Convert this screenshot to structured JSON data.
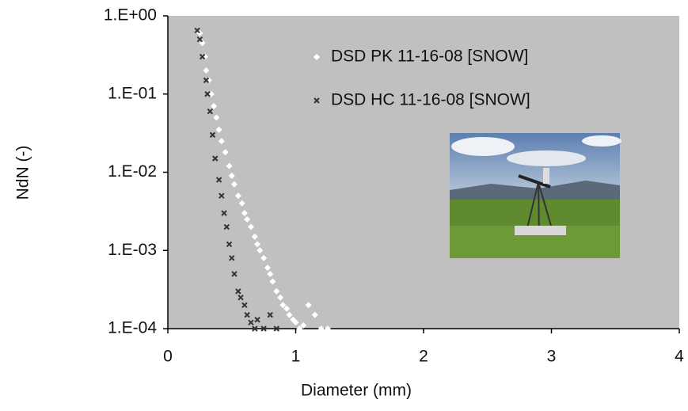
{
  "chart_data": {
    "type": "scatter",
    "x_label": "Diameter (mm)",
    "y_label": "NdN (-)",
    "xlim": [
      0,
      4
    ],
    "xticks": [
      0,
      1,
      2,
      3,
      4
    ],
    "ylim": [
      0.0001,
      1
    ],
    "log_y": true,
    "yticks": [
      {
        "value": 1,
        "label": "1.E+00"
      },
      {
        "value": 0.1,
        "label": "1.E-01"
      },
      {
        "value": 0.01,
        "label": "1.E-02"
      },
      {
        "value": 0.001,
        "label": "1.E-03"
      },
      {
        "value": 0.0001,
        "label": "1.E-04"
      }
    ],
    "legend": "upper right",
    "series": [
      {
        "name": "DSD PK 11-16-08 [SNOW]",
        "color": "#ffffff",
        "marker": "diamond",
        "x": [
          0.25,
          0.27,
          0.29,
          0.3,
          0.32,
          0.34,
          0.36,
          0.38,
          0.4,
          0.42,
          0.45,
          0.48,
          0.5,
          0.52,
          0.55,
          0.58,
          0.6,
          0.62,
          0.65,
          0.68,
          0.7,
          0.72,
          0.75,
          0.78,
          0.8,
          0.82,
          0.85,
          0.88,
          0.9,
          0.93,
          0.95,
          0.98,
          1.0,
          1.03,
          1.06,
          1.1,
          1.15,
          1.2,
          1.25
        ],
        "values": [
          0.6,
          0.45,
          0.3,
          0.2,
          0.15,
          0.1,
          0.07,
          0.05,
          0.035,
          0.025,
          0.018,
          0.012,
          0.009,
          0.007,
          0.005,
          0.004,
          0.003,
          0.0025,
          0.002,
          0.0015,
          0.0012,
          0.001,
          0.0008,
          0.0006,
          0.0005,
          0.0004,
          0.0003,
          0.00025,
          0.0002,
          0.00018,
          0.00015,
          0.00013,
          0.00012,
          0.0001,
          0.00011,
          0.0002,
          0.00015,
          0.0001,
          0.0001
        ]
      },
      {
        "name": "DSD HC 11-16-08 [SNOW]",
        "color": "#333333",
        "marker": "x",
        "x": [
          0.23,
          0.25,
          0.27,
          0.3,
          0.31,
          0.33,
          0.35,
          0.37,
          0.4,
          0.42,
          0.44,
          0.46,
          0.48,
          0.5,
          0.52,
          0.55,
          0.57,
          0.6,
          0.62,
          0.65,
          0.68,
          0.7,
          0.75,
          0.8,
          0.85
        ],
        "values": [
          0.65,
          0.5,
          0.3,
          0.15,
          0.1,
          0.06,
          0.03,
          0.015,
          0.008,
          0.005,
          0.003,
          0.002,
          0.0012,
          0.0008,
          0.0005,
          0.0003,
          0.00025,
          0.0002,
          0.00015,
          0.00012,
          0.0001,
          0.00013,
          0.0001,
          0.00015,
          0.0001
        ]
      }
    ]
  }
}
